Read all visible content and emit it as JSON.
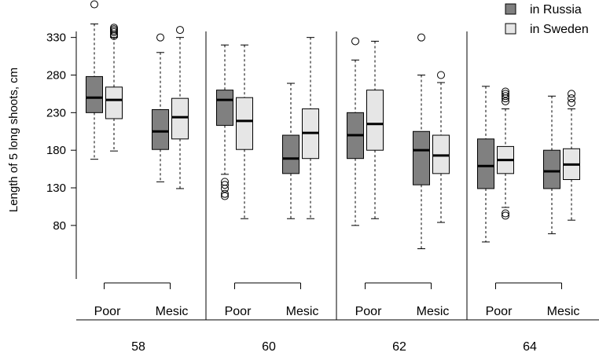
{
  "chart_data": {
    "type": "boxplot",
    "ylabel": "Length of 5 long shoots, cm",
    "yticks": [
      80,
      130,
      180,
      230,
      280,
      330
    ],
    "ylim": [
      45,
      375
    ],
    "groups": [
      "58",
      "60",
      "62",
      "64"
    ],
    "site_types": [
      "Poor",
      "Mesic"
    ],
    "legend": [
      {
        "name": "in Russia",
        "color": "#808080"
      },
      {
        "name": "in Sweden",
        "color": "#e6e6e6"
      }
    ],
    "legend_position": "top-right",
    "boxes": [
      {
        "group": "58",
        "site": "Poor",
        "series": "in Russia",
        "min": 168,
        "q1": 230,
        "median": 250,
        "q3": 278,
        "max": 348,
        "outliers": [
          374
        ]
      },
      {
        "group": "58",
        "site": "Poor",
        "series": "in Sweden",
        "min": 179,
        "q1": 222,
        "median": 247,
        "q3": 264,
        "max": 330,
        "outliers": [
          332,
          334,
          337,
          339,
          341,
          343
        ]
      },
      {
        "group": "58",
        "site": "Mesic",
        "series": "in Russia",
        "min": 138,
        "q1": 181,
        "median": 205,
        "q3": 234,
        "max": 310,
        "outliers": [
          330
        ]
      },
      {
        "group": "58",
        "site": "Mesic",
        "series": "in Sweden",
        "min": 129,
        "q1": 195,
        "median": 224,
        "q3": 249,
        "max": 330,
        "outliers": [
          340
        ]
      },
      {
        "group": "60",
        "site": "Poor",
        "series": "in Russia",
        "min": 148,
        "q1": 213,
        "median": 247,
        "q3": 260,
        "max": 320,
        "outliers": [
          119,
          122,
          129,
          134,
          138
        ]
      },
      {
        "group": "60",
        "site": "Poor",
        "series": "in Sweden",
        "min": 89,
        "q1": 181,
        "median": 219,
        "q3": 250,
        "max": 320,
        "outliers": []
      },
      {
        "group": "60",
        "site": "Mesic",
        "series": "in Russia",
        "min": 89,
        "q1": 149,
        "median": 169,
        "q3": 200,
        "max": 269,
        "outliers": []
      },
      {
        "group": "60",
        "site": "Mesic",
        "series": "in Sweden",
        "min": 89,
        "q1": 169,
        "median": 203,
        "q3": 235,
        "max": 330,
        "outliers": []
      },
      {
        "group": "62",
        "site": "Poor",
        "series": "in Russia",
        "min": 80,
        "q1": 169,
        "median": 200,
        "q3": 230,
        "max": 300,
        "outliers": [
          325
        ]
      },
      {
        "group": "62",
        "site": "Poor",
        "series": "in Sweden",
        "min": 89,
        "q1": 180,
        "median": 215,
        "q3": 260,
        "max": 325,
        "outliers": []
      },
      {
        "group": "62",
        "site": "Mesic",
        "series": "in Russia",
        "min": 49,
        "q1": 134,
        "median": 180,
        "q3": 205,
        "max": 280,
        "outliers": [
          330
        ]
      },
      {
        "group": "62",
        "site": "Mesic",
        "series": "in Sweden",
        "min": 84,
        "q1": 149,
        "median": 173,
        "q3": 200,
        "max": 270,
        "outliers": [
          280
        ]
      },
      {
        "group": "64",
        "site": "Poor",
        "series": "in Russia",
        "min": 58,
        "q1": 129,
        "median": 159,
        "q3": 195,
        "max": 265,
        "outliers": []
      },
      {
        "group": "64",
        "site": "Poor",
        "series": "in Sweden",
        "min": 104,
        "q1": 149,
        "median": 167,
        "q3": 185,
        "max": 235,
        "outliers": [
          93,
          96,
          245,
          249,
          252,
          255,
          258
        ]
      },
      {
        "group": "64",
        "site": "Mesic",
        "series": "in Russia",
        "min": 69,
        "q1": 129,
        "median": 152,
        "q3": 180,
        "max": 252,
        "outliers": []
      },
      {
        "group": "64",
        "site": "Mesic",
        "series": "in Sweden",
        "min": 87,
        "q1": 141,
        "median": 161,
        "q3": 182,
        "max": 235,
        "outliers": [
          243,
          249,
          255
        ]
      }
    ]
  }
}
